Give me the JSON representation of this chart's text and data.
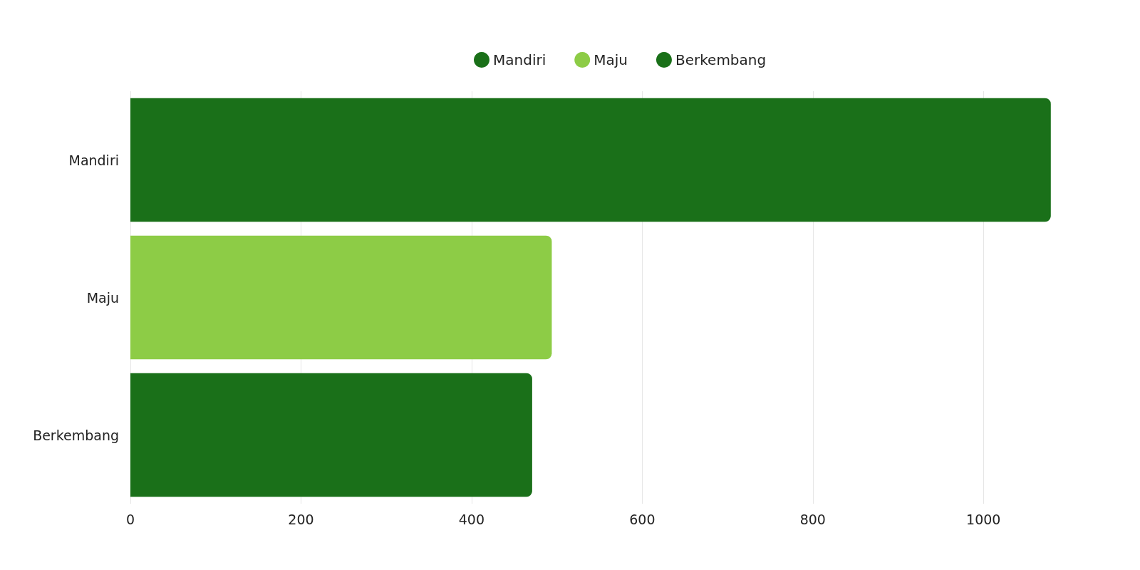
{
  "chart_data": {
    "type": "bar",
    "orientation": "horizontal",
    "stacked": true,
    "categories": [
      "Mandiri",
      "Maju",
      "Berkembang"
    ],
    "series": [
      {
        "name": "Mandiri",
        "color": "#1a7019",
        "values": [
          1079,
          null,
          null
        ]
      },
      {
        "name": "Maju",
        "color": "#8dcc46",
        "values": [
          null,
          494,
          null
        ]
      },
      {
        "name": "Berkembang",
        "color": "#1a7019",
        "values": [
          null,
          null,
          471
        ]
      }
    ],
    "xlim": [
      0,
      1080
    ],
    "xticks": [
      0,
      200,
      400,
      600,
      800,
      1000
    ],
    "grid": "x",
    "legend": "top"
  }
}
